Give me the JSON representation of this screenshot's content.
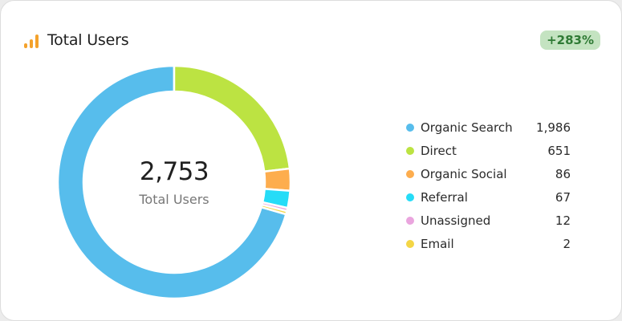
{
  "header": {
    "title": "Total Users",
    "icon": "bar-chart-icon",
    "icon_color": "#f4a22c"
  },
  "badge": {
    "text": "+283%",
    "bg": "#c4e3c1",
    "color": "#2f7a35"
  },
  "center": {
    "value": "2,753",
    "label": "Total Users"
  },
  "chart_data": {
    "type": "pie",
    "donut": true,
    "categories": [
      "Organic Search",
      "Direct",
      "Organic Social",
      "Referral",
      "Unassigned",
      "Email"
    ],
    "values": [
      1986,
      651,
      86,
      67,
      12,
      2
    ],
    "value_labels": [
      "1,986",
      "651",
      "86",
      "67",
      "12",
      "2"
    ],
    "colors": [
      "#57bdec",
      "#bce342",
      "#fdad4e",
      "#26dcf7",
      "#eaa5de",
      "#f4d646"
    ],
    "legend": "right"
  }
}
